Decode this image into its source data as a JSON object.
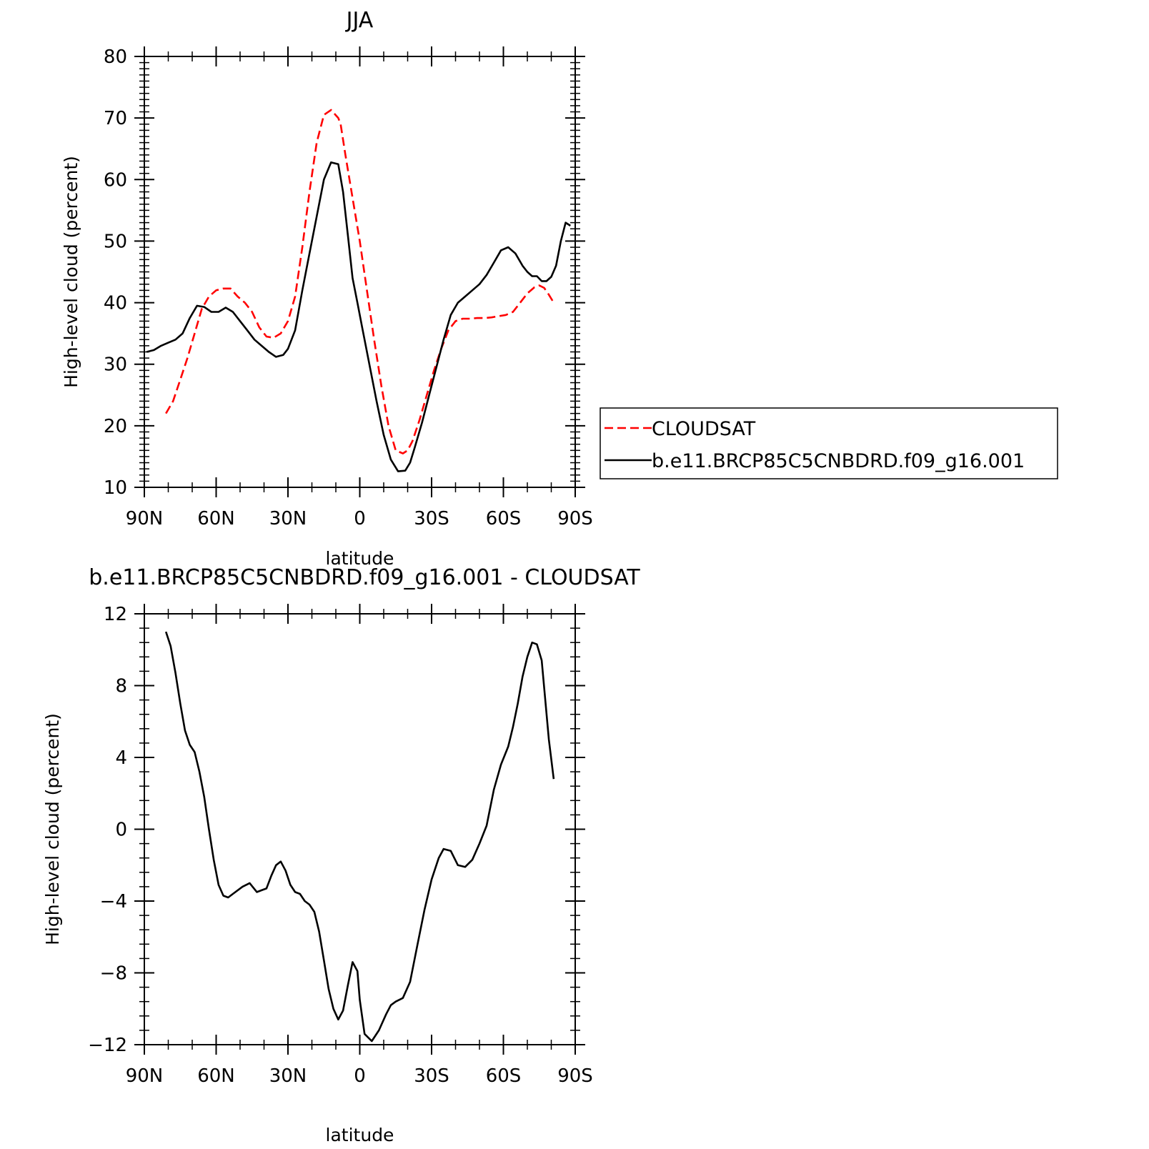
{
  "chart_data": [
    {
      "type": "line",
      "title": "JJA",
      "xlabel": "latitude",
      "ylabel": "High-level cloud (percent)",
      "xlim": [
        90,
        -90
      ],
      "ylim": [
        10,
        80
      ],
      "xticks": [
        90,
        60,
        30,
        0,
        -30,
        -60,
        -90
      ],
      "xtick_labels": [
        "90N",
        "60N",
        "30N",
        "0",
        "30S",
        "60S",
        "90S"
      ],
      "yticks": [
        10,
        20,
        30,
        40,
        50,
        60,
        70,
        80
      ],
      "ytick_labels": [
        "10",
        "20",
        "30",
        "40",
        "50",
        "60",
        "70",
        "80"
      ],
      "legend_position": "right",
      "series": [
        {
          "name": "CLOUDSAT",
          "color": "#ff0000",
          "style": "dashed",
          "x": [
            81,
            78,
            75,
            72,
            69,
            66,
            63,
            60,
            57,
            54,
            51,
            48,
            45,
            42,
            39,
            36,
            33,
            30,
            27,
            24,
            21,
            18,
            15,
            12,
            9,
            8,
            6,
            3,
            0,
            -3,
            -6,
            -9,
            -12,
            -15,
            -18,
            -20,
            -22,
            -25,
            -28,
            -31,
            -34,
            -37,
            -40,
            -43,
            -46,
            -49,
            -52,
            -55,
            -58,
            -61,
            -64,
            -67,
            -70,
            -73,
            -75,
            -77,
            -79,
            -81
          ],
          "y": [
            22.0,
            24.0,
            27.5,
            31.0,
            35.0,
            39.0,
            41.0,
            42.0,
            42.3,
            42.3,
            41.0,
            40.0,
            38.5,
            36.0,
            34.5,
            34.3,
            35.0,
            37.0,
            41.0,
            49.0,
            58.0,
            66.0,
            70.5,
            71.3,
            70.0,
            69.0,
            64.0,
            57.0,
            50.0,
            42.0,
            34.0,
            26.5,
            20.0,
            16.0,
            15.5,
            16.0,
            17.5,
            21.0,
            25.0,
            29.0,
            32.5,
            35.5,
            37.0,
            37.4,
            37.4,
            37.5,
            37.5,
            37.6,
            37.8,
            38.0,
            38.5,
            40.0,
            41.5,
            42.5,
            42.8,
            42.4,
            41.3,
            40.0
          ]
        },
        {
          "name": "b.e11.BRCP85C5CNBDRD.f09_g16.001",
          "color": "#000000",
          "style": "solid",
          "x": [
            89,
            86,
            83,
            80,
            77,
            74,
            71,
            68,
            65,
            62,
            59,
            56,
            53,
            50,
            47,
            44,
            41,
            38,
            35,
            32,
            30,
            27,
            24,
            21,
            18,
            15,
            12,
            9,
            7,
            5,
            3,
            1,
            -1,
            -4,
            -7,
            -10,
            -13,
            -16,
            -19,
            -21,
            -23,
            -26,
            -29,
            -32,
            -35,
            -38,
            -41,
            -44,
            -47,
            -50,
            -53,
            -56,
            -59,
            -62,
            -65,
            -68,
            -70,
            -72,
            -74,
            -76,
            -78,
            -80,
            -82,
            -84,
            -86,
            -88
          ],
          "y": [
            32.0,
            32.3,
            33.0,
            33.5,
            34.0,
            35.0,
            37.5,
            39.5,
            39.3,
            38.5,
            38.5,
            39.2,
            38.5,
            37.0,
            35.5,
            34.0,
            33.0,
            32.0,
            31.2,
            31.5,
            32.5,
            35.5,
            42.0,
            48.0,
            54.0,
            60.0,
            62.8,
            62.5,
            58.0,
            51.0,
            44.0,
            40.0,
            36.0,
            30.0,
            24.0,
            18.5,
            14.5,
            12.6,
            12.7,
            14.0,
            16.5,
            20.5,
            25.0,
            29.5,
            34.0,
            38.0,
            40.0,
            41.0,
            42.0,
            43.0,
            44.5,
            46.5,
            48.5,
            49.0,
            48.0,
            46.0,
            45.0,
            44.3,
            44.3,
            43.5,
            43.5,
            44.2,
            46.0,
            50.0,
            53.0,
            52.5
          ]
        }
      ]
    },
    {
      "type": "line",
      "title": "b.e11.BRCP85C5CNBDRD.f09_g16.001 - CLOUDSAT",
      "xlabel": "latitude",
      "ylabel": "High-level cloud (percent)",
      "xlim": [
        90,
        -90
      ],
      "ylim": [
        -12,
        12
      ],
      "xticks": [
        90,
        60,
        30,
        0,
        -30,
        -60,
        -90
      ],
      "xtick_labels": [
        "90N",
        "60N",
        "30N",
        "0",
        "30S",
        "60S",
        "90S"
      ],
      "yticks": [
        -12,
        -8,
        -4,
        0,
        4,
        8,
        12
      ],
      "ytick_labels": [
        "−12",
        "−8",
        "−4",
        "0",
        "4",
        "8",
        "12"
      ],
      "series": [
        {
          "color": "#000000",
          "style": "solid",
          "x": [
            81,
            79,
            77,
            75,
            73,
            71,
            69,
            67,
            65,
            63,
            61,
            59,
            57,
            55,
            53,
            49,
            46,
            43,
            41,
            39,
            37,
            35,
            33,
            31,
            29,
            27,
            25,
            23,
            21,
            19,
            17,
            15,
            13,
            11,
            9,
            7,
            5,
            3,
            1,
            0,
            -2,
            -5,
            -8,
            -11,
            -13,
            -15,
            -18,
            -21,
            -24,
            -27,
            -30,
            -33,
            -35,
            -38,
            -41,
            -44,
            -47,
            -50,
            -53,
            -56,
            -59,
            -62,
            -64,
            -66,
            -68,
            -70,
            -72,
            -74,
            -76,
            -79,
            -81
          ],
          "y": [
            11.0,
            10.2,
            8.7,
            7.0,
            5.5,
            4.7,
            4.3,
            3.2,
            1.8,
            0.0,
            -1.7,
            -3.1,
            -3.7,
            -3.8,
            -3.6,
            -3.2,
            -3.0,
            -3.5,
            -3.4,
            -3.3,
            -2.6,
            -2.0,
            -1.8,
            -2.3,
            -3.1,
            -3.5,
            -3.6,
            -4.0,
            -4.2,
            -4.6,
            -5.7,
            -7.3,
            -8.9,
            -10.0,
            -10.6,
            -10.1,
            -8.7,
            -7.4,
            -7.9,
            -9.5,
            -11.4,
            -11.8,
            -11.2,
            -10.3,
            -9.8,
            -9.6,
            -9.4,
            -8.5,
            -6.5,
            -4.5,
            -2.8,
            -1.6,
            -1.1,
            -1.2,
            -2.0,
            -2.1,
            -1.7,
            -0.8,
            0.2,
            2.2,
            3.6,
            4.6,
            5.7,
            7.0,
            8.5,
            9.6,
            10.4,
            10.3,
            9.4,
            5.0,
            2.8
          ]
        }
      ]
    }
  ]
}
